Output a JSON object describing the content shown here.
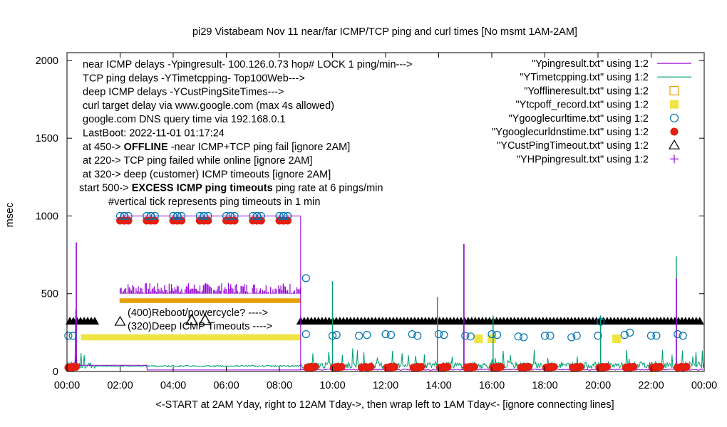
{
  "chart_data": {
    "type": "scatter",
    "title": "pi29 Vistabeam Nov 11  near/far ICMP/TCP ping and curl times [No msmt 1AM-2AM]",
    "xlabel": "<-START at 2AM Yday, right to 12AM Tday->, then wrap left to 1AM Tday<- [ignore connecting lines]",
    "ylabel": "msec",
    "xlim": [
      0,
      24
    ],
    "ylim": [
      0,
      2050
    ],
    "x_ticks": [
      {
        "v": 0,
        "label": "00:00"
      },
      {
        "v": 2,
        "label": "02:00"
      },
      {
        "v": 4,
        "label": "04:00"
      },
      {
        "v": 6,
        "label": "06:00"
      },
      {
        "v": 8,
        "label": "08:00"
      },
      {
        "v": 10,
        "label": "10:00"
      },
      {
        "v": 12,
        "label": "12:00"
      },
      {
        "v": 14,
        "label": "14:00"
      },
      {
        "v": 16,
        "label": "16:00"
      },
      {
        "v": 18,
        "label": "18:00"
      },
      {
        "v": 20,
        "label": "20:00"
      },
      {
        "v": 22,
        "label": "22:00"
      },
      {
        "v": 24,
        "label": "00:00"
      }
    ],
    "y_ticks": [
      {
        "v": 0,
        "label": "0"
      },
      {
        "v": 500,
        "label": "500"
      },
      {
        "v": 1000,
        "label": "1000"
      },
      {
        "v": 1500,
        "label": "1500"
      },
      {
        "v": 2000,
        "label": "2000"
      }
    ],
    "annotations": {
      "lines": [
        {
          "text": "near ICMP delays -Ypingresult- 100.126.0.73 hop# LOCK 1 ping/min--->"
        },
        {
          "text": "TCP ping delays -YTimetcpping- Top100Web--->"
        },
        {
          "text": "deep ICMP delays -YCustPingSiteTimes--->"
        },
        {
          "text": "curl target delay via www.google.com (max 4s allowed)"
        },
        {
          "text": "google.com DNS query time via 192.168.0.1"
        },
        {
          "text": "LastBoot: 2022-11-01 01:17:24"
        },
        {
          "pre": "at 450-> ",
          "bold": "OFFLINE",
          "post": " -near ICMP+TCP ping fail [ignore 2AM]"
        },
        {
          "text": "at 220-> TCP ping failed while online [ignore 2AM]"
        },
        {
          "text": "at 320-> deep (customer) ICMP timeouts [ignore 2AM]"
        },
        {
          "pre": "start 500-> ",
          "bold": "EXCESS ICMP ping timeouts",
          "post": "  ping rate at 6 pings/min"
        },
        {
          "text": "#vertical tick represents ping timeouts in 1 min"
        }
      ],
      "reboot_label": "(400)Reboot/powercycle? ---->",
      "deep_label": "(320)Deep ICMP Timeouts ---->"
    },
    "legend_position": "top-right",
    "series": [
      {
        "name": "\"Ypingresult.txt\" using 1:2",
        "style": "line",
        "color": "#9400d3"
      },
      {
        "name": "\"YTimetcpping.txt\" using 1:2",
        "style": "line",
        "color": "#009e73"
      },
      {
        "name": "\"Yofflineresult.txt\" using 1:2",
        "style": "open-square",
        "color": "#e69f00"
      },
      {
        "name": "\"Ytcpoff_record.txt\" using 1:2",
        "style": "filled-square",
        "color": "#f0e442"
      },
      {
        "name": "\"Ygooglecurltime.txt\" using 1:2",
        "style": "open-circle",
        "color": "#0072b2"
      },
      {
        "name": "\"Ygooglecurldnstime.txt\" using 1:2",
        "style": "filled-circle",
        "color": "#e51e10"
      },
      {
        "name": "\"YCustPingTimeout.txt\" using 1:2",
        "style": "open-triangle",
        "color": "#000000"
      },
      {
        "name": "\"YHPpingresult.txt\" using 1:2",
        "style": "plus",
        "color": "#9400d3"
      }
    ],
    "points": {
      "curl_hi": [
        2.0,
        2.15,
        3.0,
        3.15,
        4.0,
        4.15,
        5.0,
        5.15,
        6.0,
        6.15,
        7.0,
        7.15,
        8.0,
        8.15
      ],
      "curl_lo": [
        [
          0.05,
          230
        ],
        [
          0.22,
          230
        ],
        [
          9.0,
          240
        ],
        [
          10.0,
          230
        ],
        [
          10.15,
          235
        ],
        [
          11.0,
          230
        ],
        [
          11.3,
          235
        ],
        [
          12.0,
          240
        ],
        [
          12.2,
          235
        ],
        [
          13.0,
          240
        ],
        [
          13.2,
          230
        ],
        [
          14.0,
          240
        ],
        [
          14.2,
          235
        ],
        [
          15.0,
          230
        ],
        [
          15.2,
          225
        ],
        [
          16.0,
          240
        ],
        [
          16.2,
          235
        ],
        [
          17.0,
          225
        ],
        [
          17.2,
          220
        ],
        [
          18.0,
          230
        ],
        [
          18.2,
          230
        ],
        [
          19.0,
          220
        ],
        [
          19.2,
          230
        ],
        [
          20.0,
          230
        ],
        [
          21.0,
          235
        ],
        [
          21.2,
          250
        ],
        [
          22.0,
          230
        ],
        [
          22.2,
          230
        ],
        [
          23.0,
          240
        ],
        [
          23.2,
          230
        ],
        [
          20.1,
          320
        ]
      ],
      "dns_hi": [
        2.0,
        2.15,
        3.0,
        3.15,
        4.0,
        4.15,
        5.0,
        5.15,
        6.0,
        6.15,
        7.0,
        7.15,
        8.0,
        8.15
      ],
      "dns_lo": [
        0.05,
        0.2,
        9.05,
        9.2,
        10.05,
        10.2,
        11.1,
        11.3,
        12.05,
        12.2,
        13.05,
        13.2,
        14.05,
        14.2,
        15.05,
        15.2,
        16.05,
        16.2,
        17.1,
        17.25,
        18.05,
        18.2,
        19.05,
        19.2,
        20.05,
        20.2,
        21.05,
        21.2,
        22.05,
        22.2,
        23.0,
        23.2
      ],
      "tcpoff": [
        [
          15.5,
          210
        ],
        [
          16.0,
          210
        ],
        [
          20.7,
          210
        ]
      ],
      "cust_timeout_bumps": [
        4.7,
        5.2
      ],
      "curl_extra": [
        [
          9.0,
          600
        ]
      ],
      "spikes_purple": [
        [
          0.35,
          830
        ],
        [
          14.95,
          820
        ],
        [
          22.95,
          600
        ]
      ],
      "spikes_green": [
        [
          10.0,
          580
        ],
        [
          13.95,
          480
        ],
        [
          16.05,
          360
        ],
        [
          20.1,
          360
        ],
        [
          22.95,
          740
        ]
      ]
    },
    "regions": {
      "excess_start": 2.0,
      "excess_end": 8.8,
      "offline_hi_start": 2.0,
      "offline_hi_end": 8.8,
      "offline_band_start": 0.55,
      "offline_band_end": 8.8,
      "black_band_a_end": 1.1,
      "black_band_b_start": 8.8,
      "deep_marker_x": 2.0
    }
  }
}
